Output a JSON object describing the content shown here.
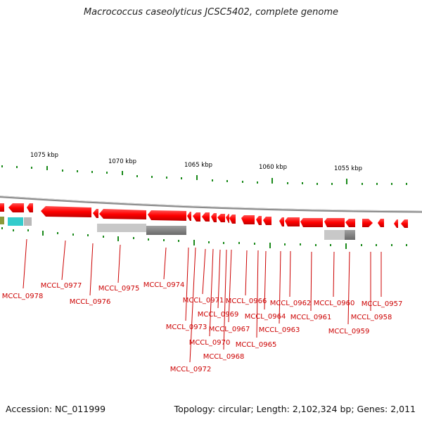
{
  "title": "Macrococcus caseolyticus JCSC5402, complete genome",
  "accession": "Accession: NC_011999",
  "summary": "Topology: circular; Length: 2,102,324 bp; Genes: 2,011",
  "scale_labels": [
    "1075 kbp",
    "1070 kbp",
    "1065 kbp",
    "1060 kbp",
    "1055 kbp"
  ],
  "gene_labels": [
    "MCCL_0978",
    "MCCL_0977",
    "MCCL_0976",
    "MCCL_0975",
    "MCCL_0974",
    "MCCL_0973",
    "MCCL_0972",
    "MCCL_0971",
    "MCCL_0970",
    "MCCL_0969",
    "MCCL_0968",
    "MCCL_0967",
    "MCCL_0966",
    "MCCL_0965",
    "MCCL_0964",
    "MCCL_0963",
    "MCCL_0962",
    "MCCL_0961",
    "MCCL_0960",
    "MCCL_0959",
    "MCCL_0958",
    "MCCL_0957"
  ],
  "colors": {
    "gene": "#ff0000",
    "gene_dark": "#c80000",
    "label": "#cc0000",
    "tick": "#1a8a1a",
    "backbone": "#8a8a8a",
    "rna": "#33cccc",
    "repeat_light": "#c8c8c8",
    "repeat_dark": "#6a6a6a"
  }
}
